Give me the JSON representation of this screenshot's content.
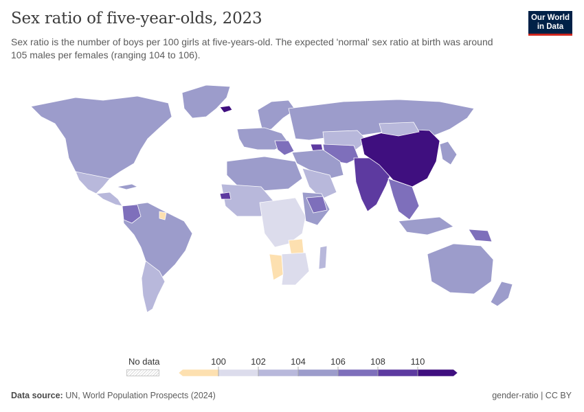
{
  "title": "Sex ratio of five-year-olds, 2023",
  "subtitle": "Sex ratio is the number of boys per 100 girls at five-years-old. The expected 'normal' sex ratio at birth was around 105 males per females (ranging 104 to 106).",
  "logo": {
    "line1": "Our World",
    "line2": "in Data"
  },
  "legend": {
    "no_data_label": "No data",
    "ticks": [
      "100",
      "102",
      "104",
      "106",
      "108",
      "110"
    ],
    "bin_colors": [
      "#fde0b0",
      "#dcdcec",
      "#b8b8db",
      "#9c9ccb",
      "#7e6fbb",
      "#5d3aa0",
      "#3f0f7f"
    ]
  },
  "footer": {
    "source_label": "Data source:",
    "source_text": "UN, World Population Prospects (2024)",
    "right": "gender-ratio | CC BY"
  },
  "regions": [
    {
      "name": "North America",
      "color": "#9c9ccb"
    },
    {
      "name": "Greenland",
      "color": "#9c9ccb"
    },
    {
      "name": "Mexico",
      "color": "#b8b8db"
    },
    {
      "name": "Central America",
      "color": "#b8b8db"
    },
    {
      "name": "Cuba",
      "color": "#9c9ccb"
    },
    {
      "name": "South America",
      "color": "#9c9ccb"
    },
    {
      "name": "Colombia",
      "color": "#7e6fbb"
    },
    {
      "name": "Suriname",
      "color": "#fde0b0"
    },
    {
      "name": "Southern Cone",
      "color": "#b8b8db"
    },
    {
      "name": "Iceland",
      "color": "#3f0f7f"
    },
    {
      "name": "Scandinavia",
      "color": "#9c9ccb"
    },
    {
      "name": "Western Europe",
      "color": "#9c9ccb"
    },
    {
      "name": "Balkans",
      "color": "#7e6fbb"
    },
    {
      "name": "Russia",
      "color": "#9c9ccb"
    },
    {
      "name": "Caucasus",
      "color": "#5d3aa0"
    },
    {
      "name": "Kazakhstan",
      "color": "#b8b8db"
    },
    {
      "name": "Central Asia",
      "color": "#7e6fbb"
    },
    {
      "name": "Middle East",
      "color": "#9c9ccb"
    },
    {
      "name": "Arabia",
      "color": "#b8b8db"
    },
    {
      "name": "North Africa",
      "color": "#9c9ccb"
    },
    {
      "name": "West Africa",
      "color": "#b8b8db"
    },
    {
      "name": "Senegal",
      "color": "#5d3aa0"
    },
    {
      "name": "Central Africa",
      "color": "#dcdcec"
    },
    {
      "name": "East Africa",
      "color": "#9c9ccb"
    },
    {
      "name": "Ethiopia",
      "color": "#7e6fbb"
    },
    {
      "name": "Zambia",
      "color": "#fde0b0"
    },
    {
      "name": "Namibia",
      "color": "#fde0b0"
    },
    {
      "name": "Southern Africa",
      "color": "#dcdcec"
    },
    {
      "name": "Madagascar",
      "color": "#b8b8db"
    },
    {
      "name": "India",
      "color": "#5d3aa0"
    },
    {
      "name": "China",
      "color": "#3f0f7f"
    },
    {
      "name": "Mongolia",
      "color": "#b8b8db"
    },
    {
      "name": "Korea & Japan",
      "color": "#9c9ccb"
    },
    {
      "name": "Southeast Asia",
      "color": "#7e6fbb"
    },
    {
      "name": "Indonesia",
      "color": "#9c9ccb"
    },
    {
      "name": "Papua New Guinea",
      "color": "#7e6fbb"
    },
    {
      "name": "Australia",
      "color": "#9c9ccb"
    },
    {
      "name": "New Zealand",
      "color": "#9c9ccb"
    }
  ]
}
